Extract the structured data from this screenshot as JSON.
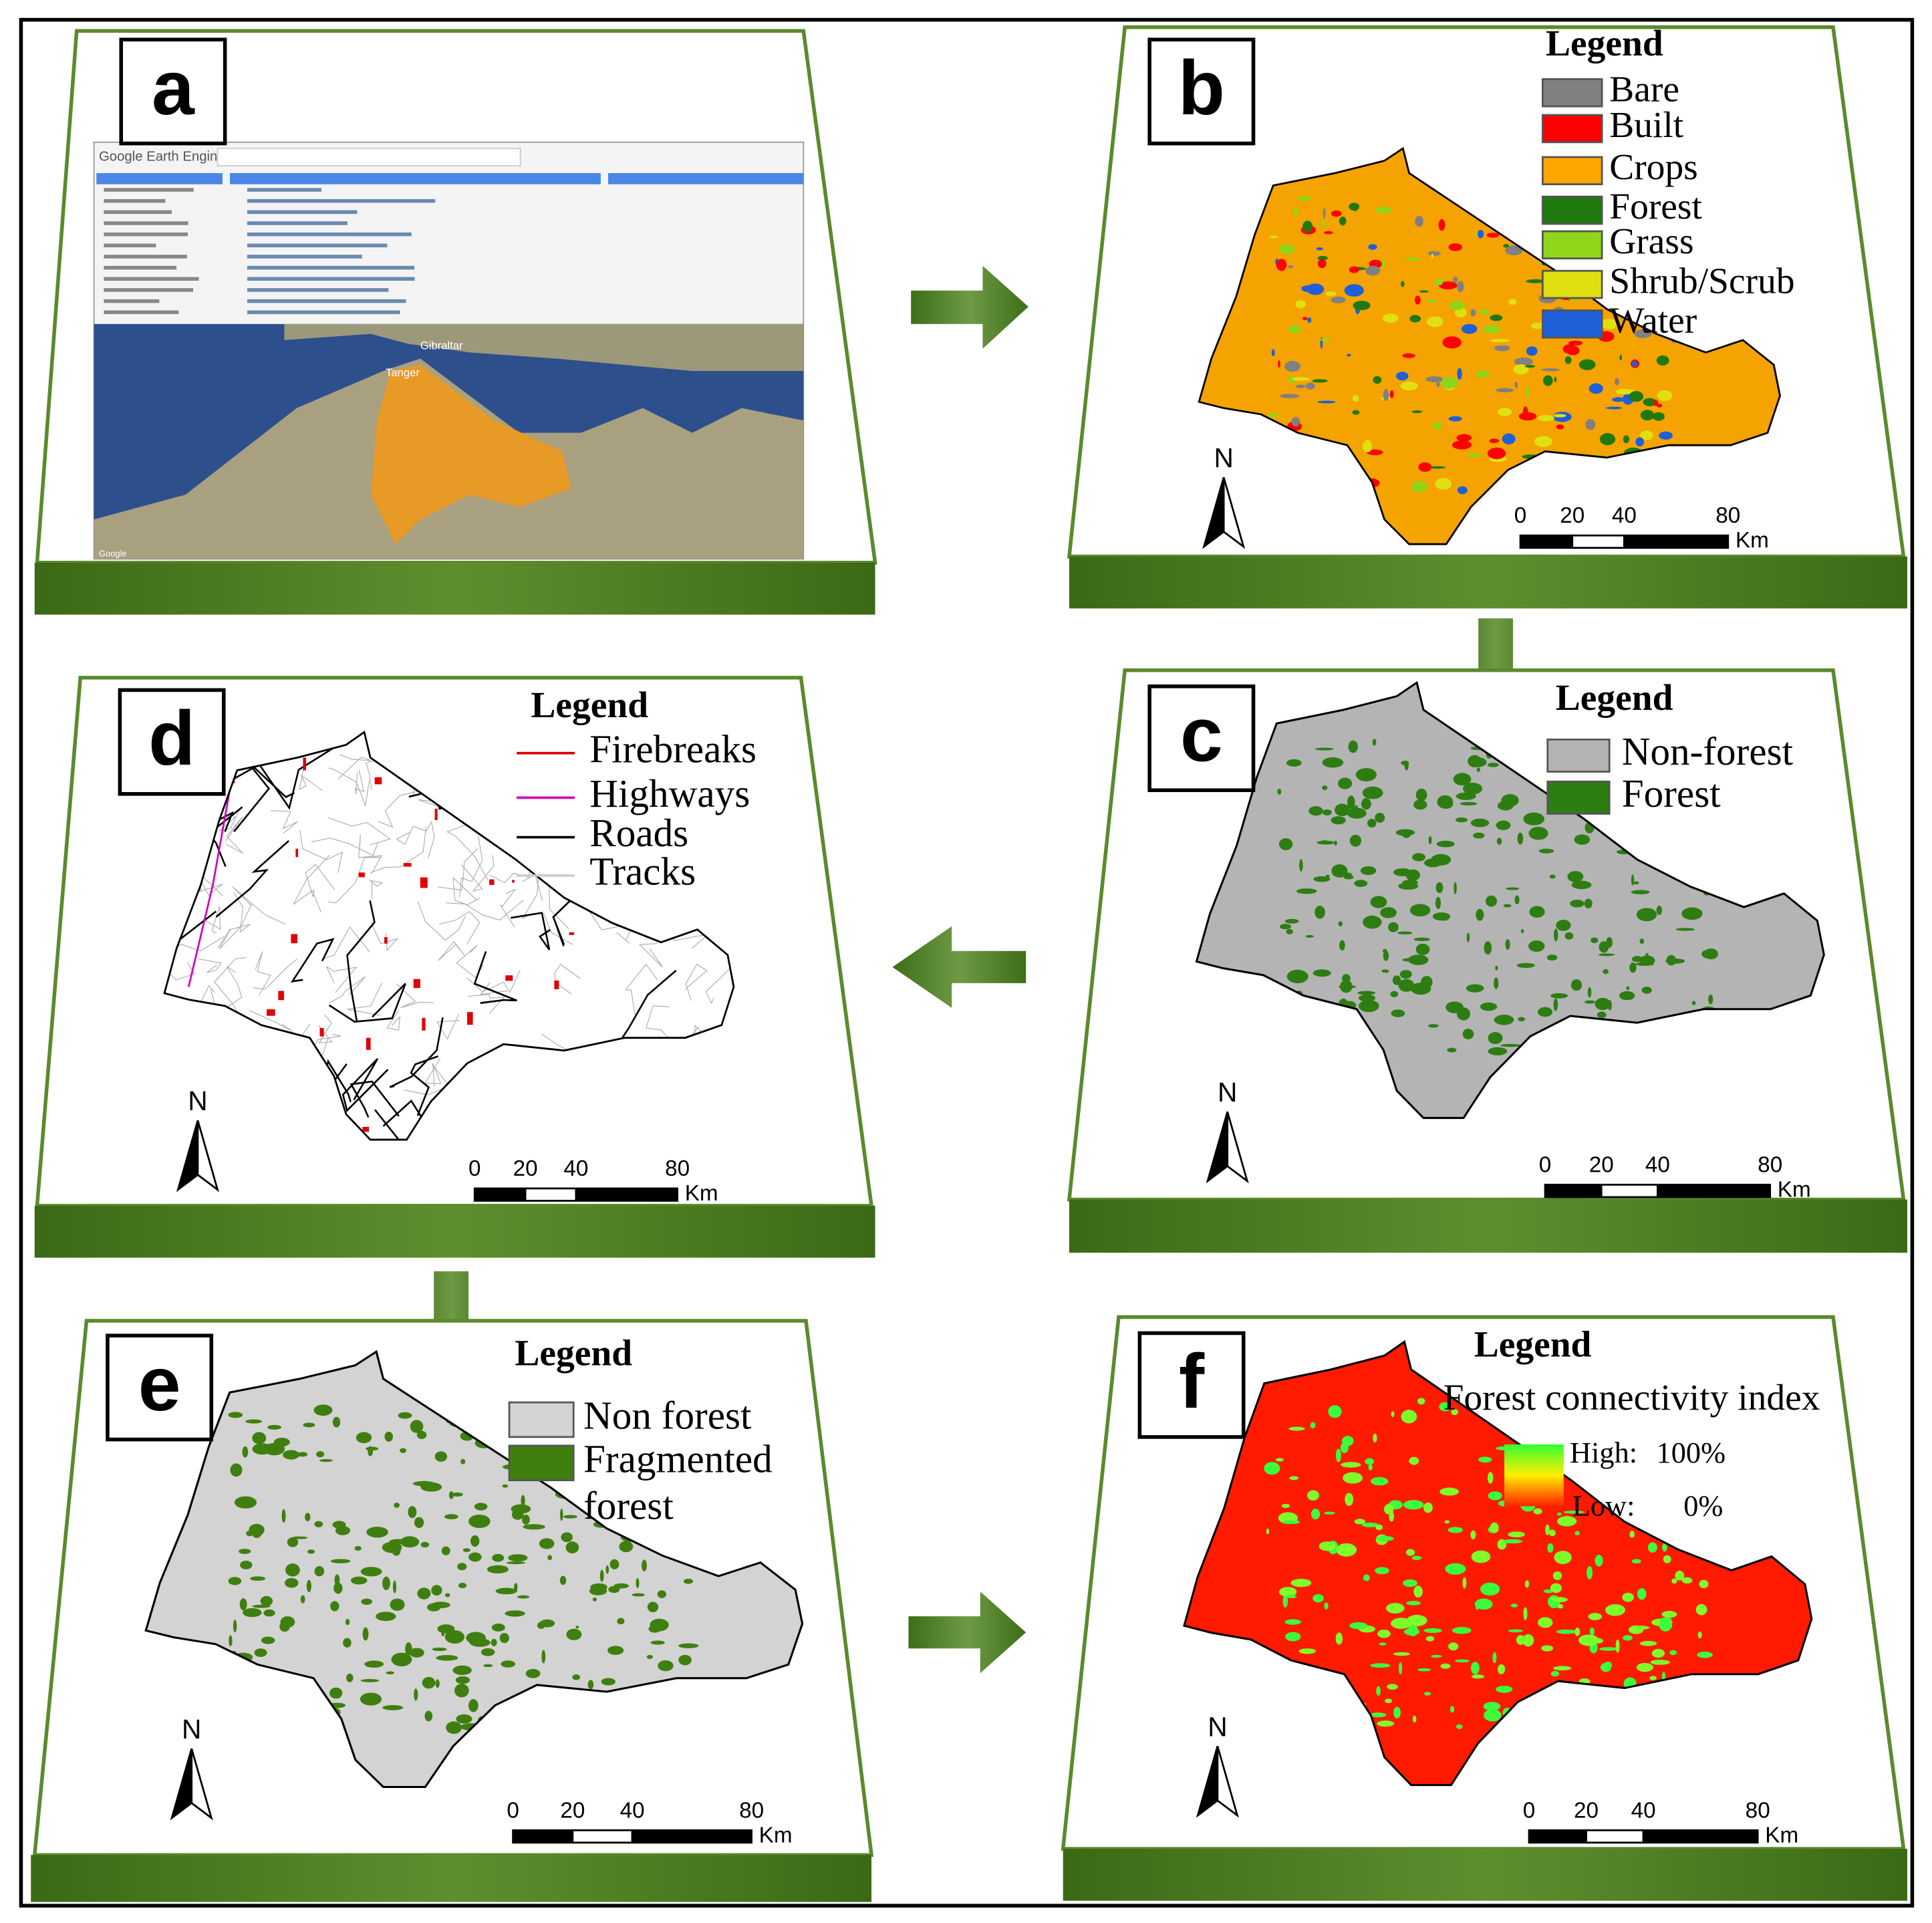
{
  "panels": [
    {
      "label": "a",
      "screenshot": {
        "app_title": "Google Earth Engine",
        "places": [
          "Gibraltar",
          "Tanger"
        ],
        "attribution": "Google"
      }
    },
    {
      "label": "b",
      "legend": {
        "title": "Legend",
        "symbol": "box",
        "items": [
          {
            "name": "Bare",
            "color": "#808080"
          },
          {
            "name": "Built",
            "color": "#ff0000"
          },
          {
            "name": "Crops",
            "color": "#ffa500"
          },
          {
            "name": "Forest",
            "color": "#1e7a0e"
          },
          {
            "name": "Grass",
            "color": "#8fd61a"
          },
          {
            "name": "Shrub/Scrub",
            "color": "#e0e010"
          },
          {
            "name": "Water",
            "color": "#1f5fd8"
          }
        ]
      },
      "north": "N",
      "scale": {
        "ticks": [
          0,
          20,
          40,
          80
        ],
        "unit": "Km"
      }
    },
    {
      "label": "c",
      "legend": {
        "title": "Legend",
        "symbol": "box",
        "items": [
          {
            "name": "Non-forest",
            "color": "#b4b4b4"
          },
          {
            "name": "Forest",
            "color": "#2e7d13"
          }
        ]
      },
      "north": "N",
      "scale": {
        "ticks": [
          0,
          20,
          40,
          80
        ],
        "unit": "Km"
      }
    },
    {
      "label": "d",
      "legend": {
        "title": "Legend",
        "symbol": "line",
        "items": [
          {
            "name": "Firebreaks",
            "color": "#e00000"
          },
          {
            "name": "Highways",
            "color": "#d000c0"
          },
          {
            "name": "Roads",
            "color": "#000000"
          },
          {
            "name": "Tracks",
            "color": "#cccccc"
          }
        ]
      },
      "north": "N",
      "scale": {
        "ticks": [
          0,
          20,
          40,
          80
        ],
        "unit": "Km"
      }
    },
    {
      "label": "e",
      "legend": {
        "title": "Legend",
        "symbol": "box",
        "items": [
          {
            "name": "Non forest",
            "color": "#d3d3d3"
          },
          {
            "name": [
              "Fragmented",
              "forest"
            ],
            "color": "#3f7f10"
          }
        ]
      },
      "north": "N",
      "scale": {
        "ticks": [
          0,
          20,
          40,
          80
        ],
        "unit": "Km"
      }
    },
    {
      "label": "f",
      "legend": {
        "title": "Legend",
        "subtitle": "Forest connectivity index",
        "high_label": "High:",
        "high_value": "100%",
        "low_label": "Low:",
        "low_value": "0%",
        "high_color": "#33ff33",
        "low_color": "#ff2200"
      },
      "north": "N",
      "scale": {
        "ticks": [
          0,
          20,
          40,
          80
        ],
        "unit": "Km"
      }
    }
  ]
}
